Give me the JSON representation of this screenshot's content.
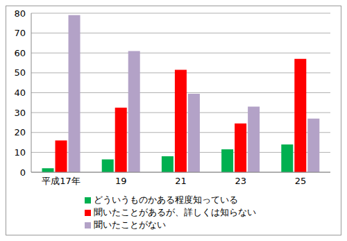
{
  "chart_data": {
    "type": "bar",
    "categories": [
      "平成17年",
      "19",
      "21",
      "23",
      "25"
    ],
    "series": [
      {
        "name": "どういうものかある程度知っている",
        "color": "#00b050",
        "values": [
          2,
          6.5,
          8,
          11.5,
          14
        ]
      },
      {
        "name": "聞いたことがあるが、詳しくは知らない",
        "color": "#ff0000",
        "values": [
          16,
          32.5,
          51.5,
          24.5,
          57
        ]
      },
      {
        "name": "聞いたことがない",
        "color": "#b3a2c7",
        "values": [
          79,
          61,
          39.5,
          33,
          27
        ]
      }
    ],
    "ylim": [
      0,
      80
    ],
    "yticks": [
      0,
      10,
      20,
      30,
      40,
      50,
      60,
      70,
      80
    ],
    "grid": true,
    "legend": "bottom"
  }
}
